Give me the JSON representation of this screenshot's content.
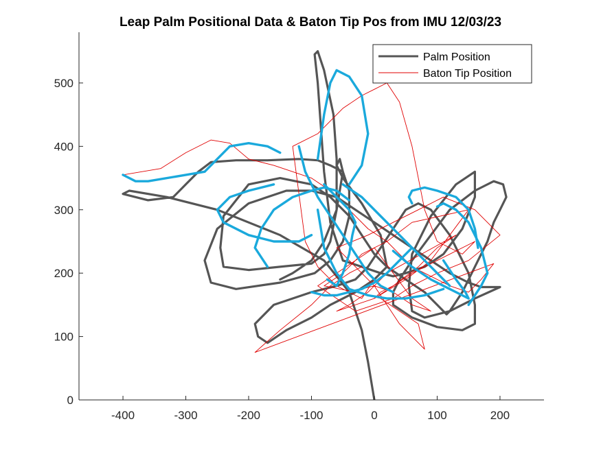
{
  "chart_data": {
    "type": "line",
    "title": "Leap Palm Positional Data & Baton Tip Pos from IMU 12/03/23",
    "xlabel": "",
    "ylabel": "",
    "xlim": [
      -470,
      270
    ],
    "ylim": [
      0,
      580
    ],
    "xticks": [
      -400,
      -300,
      -200,
      -100,
      0,
      100,
      200
    ],
    "yticks": [
      0,
      100,
      200,
      300,
      400,
      500
    ],
    "xtick_labels": [
      "-400",
      "-300",
      "-200",
      "-100",
      "0",
      "100",
      "200"
    ],
    "ytick_labels": [
      "0",
      "100",
      "200",
      "300",
      "400",
      "500"
    ],
    "grid": false,
    "legend_position": "top-right",
    "series": [
      {
        "name": "Palm Position",
        "color": "#555555",
        "style": "thick-line",
        "x": [
          0,
          -10,
          -20,
          -40,
          -80,
          -150,
          -250,
          -330,
          -390,
          -400,
          -360,
          -320,
          -300,
          -280,
          -260,
          -220,
          -170,
          -120,
          -90,
          -70,
          -50,
          -40,
          -40,
          -50,
          -70,
          -95,
          -150,
          -220,
          -260,
          -270,
          -250,
          -200,
          -140,
          -100,
          -60,
          -30,
          0,
          30,
          60,
          90,
          120,
          150,
          170,
          200,
          160,
          120,
          80,
          60,
          55,
          60,
          90,
          130,
          160,
          160,
          140,
          110,
          80,
          50,
          30,
          10,
          -20,
          -50,
          -70,
          -80,
          -85,
          -90,
          -95,
          -90,
          -80,
          -65,
          -60,
          -60,
          -70,
          -80,
          -100,
          -150,
          -200,
          -240,
          -245,
          -240,
          -200,
          -150,
          -100,
          -70,
          -40,
          -20,
          0,
          20,
          50,
          80,
          100,
          110,
          115,
          120,
          140,
          160,
          180,
          190,
          200,
          210,
          205,
          190,
          160,
          120,
          90,
          60,
          40,
          30,
          30,
          60,
          100,
          140,
          160,
          160,
          150,
          120,
          90,
          70,
          50,
          30,
          10,
          -10,
          -30,
          -60,
          -100,
          -160,
          -190,
          -185,
          -170,
          -140,
          -100,
          -70,
          -30,
          0,
          20,
          10,
          -20,
          -50,
          -60,
          -55,
          -50,
          -60,
          -80,
          -100,
          -130,
          -150
        ],
        "y": [
          0,
          60,
          110,
          170,
          220,
          260,
          300,
          320,
          330,
          325,
          315,
          320,
          340,
          360,
          375,
          378,
          378,
          380,
          378,
          370,
          360,
          330,
          290,
          250,
          220,
          200,
          185,
          175,
          185,
          220,
          270,
          310,
          330,
          330,
          320,
          300,
          280,
          260,
          240,
          220,
          200,
          185,
          178,
          178,
          160,
          140,
          130,
          140,
          180,
          230,
          290,
          340,
          360,
          320,
          270,
          230,
          210,
          200,
          195,
          200,
          210,
          220,
          280,
          360,
          430,
          500,
          545,
          550,
          520,
          450,
          380,
          300,
          250,
          230,
          215,
          210,
          205,
          210,
          240,
          290,
          340,
          350,
          340,
          320,
          290,
          260,
          230,
          210,
          190,
          170,
          150,
          140,
          135,
          140,
          170,
          210,
          250,
          280,
          300,
          320,
          340,
          345,
          330,
          300,
          260,
          220,
          190,
          170,
          150,
          130,
          115,
          110,
          120,
          150,
          200,
          260,
          300,
          310,
          300,
          270,
          240,
          210,
          190,
          180,
          170,
          150,
          120,
          100,
          90,
          110,
          130,
          150,
          170,
          190,
          210,
          260,
          310,
          350,
          370,
          380,
          360,
          300,
          250,
          220,
          200,
          190
        ]
      },
      {
        "name": "Baton Tip Position",
        "color": "#e00000",
        "style": "thin-line",
        "x": [
          -400,
          -340,
          -300,
          -260,
          -230,
          -200,
          -160,
          -130,
          -100,
          -70,
          -40,
          -10,
          20,
          40,
          60,
          80,
          100,
          120,
          150,
          170,
          190,
          -190,
          -150,
          -100,
          -70,
          -40,
          -20,
          0,
          -20,
          -60,
          -90,
          -110,
          -130,
          -90,
          -50,
          -20,
          0,
          20,
          40,
          60,
          80,
          100,
          140,
          160,
          100,
          60,
          30,
          10,
          0,
          30,
          70,
          100,
          130,
          20,
          -10,
          -40,
          -60,
          0,
          50,
          90,
          120,
          150,
          60,
          20,
          -20,
          -50,
          -80,
          -30,
          10,
          40,
          70,
          80,
          60,
          40,
          20,
          0,
          -20,
          -40,
          -60,
          -10,
          30,
          70,
          110,
          160,
          200,
          150,
          100,
          60,
          30,
          0,
          -30,
          -60,
          -90,
          -60,
          -30,
          0,
          30,
          60,
          90,
          60,
          30,
          0,
          -20
        ],
        "y": [
          355,
          365,
          390,
          410,
          405,
          380,
          370,
          360,
          350,
          330,
          300,
          270,
          250,
          230,
          210,
          200,
          190,
          180,
          170,
          190,
          215,
          75,
          110,
          150,
          180,
          200,
          210,
          190,
          160,
          180,
          210,
          250,
          400,
          420,
          460,
          480,
          490,
          500,
          470,
          400,
          300,
          250,
          230,
          250,
          220,
          200,
          180,
          170,
          160,
          180,
          210,
          240,
          260,
          200,
          170,
          150,
          140,
          160,
          190,
          220,
          260,
          300,
          280,
          250,
          230,
          200,
          180,
          170,
          160,
          140,
          120,
          80,
          100,
          120,
          150,
          180,
          200,
          220,
          240,
          260,
          280,
          300,
          320,
          300,
          260,
          220,
          200,
          180,
          160,
          150,
          140,
          160,
          180,
          200,
          220,
          240,
          200,
          160,
          140,
          150,
          170,
          180,
          175
        ]
      },
      {
        "name": "",
        "color": "#1aa9dc",
        "style": "thick-line-segments",
        "x": [
          -400,
          -380,
          -360,
          -270,
          -255,
          -230,
          -200,
          -170,
          -150,
          -130,
          -100,
          -80,
          -60,
          -40,
          -30,
          -35,
          -40,
          -50,
          -60,
          -75,
          -90,
          -95,
          -90,
          -80,
          -70,
          -60,
          -40,
          -20,
          -10,
          -20,
          -40,
          -60,
          -80,
          -100,
          -120,
          -160,
          -200,
          -240,
          -250,
          -230,
          -200,
          -160,
          -120,
          -80,
          -50,
          -20,
          10,
          40,
          60,
          80,
          100,
          110,
          120,
          130,
          140,
          150,
          160,
          170,
          180,
          170,
          150,
          130,
          110,
          100,
          90,
          80,
          60,
          40,
          20,
          0,
          -20,
          -40,
          -60,
          -80,
          -100,
          -120,
          -140,
          -170,
          -190,
          -180,
          -160,
          -130,
          -100,
          -80,
          -60,
          -40,
          -20,
          0,
          30,
          60,
          90,
          120,
          140,
          150,
          145,
          130,
          110,
          90,
          70,
          60,
          55,
          60,
          80,
          100,
          130,
          150,
          160,
          165,
          160,
          140,
          110,
          80,
          50,
          20,
          -10,
          -40,
          -60,
          -80,
          -90,
          -100,
          -110,
          -120,
          -110,
          -90,
          -70,
          -50,
          -30,
          -10,
          10,
          30
        ],
        "y": [
          355,
          345,
          345,
          360,
          375,
          400,
          405,
          400,
          390,
          380,
          360,
          340,
          320,
          300,
          280,
          260,
          230,
          200,
          180,
          190,
          230,
          300,
          380,
          450,
          500,
          520,
          510,
          480,
          420,
          370,
          340,
          300,
          280,
          260,
          250,
          250,
          260,
          280,
          300,
          320,
          330,
          340,
          350,
          350,
          340,
          320,
          290,
          260,
          240,
          220,
          200,
          190,
          180,
          170,
          160,
          150,
          165,
          180,
          200,
          240,
          280,
          300,
          310,
          305,
          290,
          270,
          240,
          220,
          200,
          185,
          175,
          170,
          165,
          165,
          170,
          180,
          190,
          210,
          240,
          270,
          300,
          320,
          330,
          335,
          330,
          315,
          290,
          260,
          235,
          210,
          190,
          175,
          165,
          160,
          170,
          190,
          220,
          260,
          290,
          310,
          320,
          330,
          335,
          330,
          320,
          300,
          270,
          240,
          210,
          190,
          175,
          165,
          160,
          160,
          165,
          175,
          200,
          240,
          300,
          380,
          420,
          400,
          360,
          320,
          290,
          260,
          230,
          200,
          180,
          170
        ]
      }
    ]
  }
}
